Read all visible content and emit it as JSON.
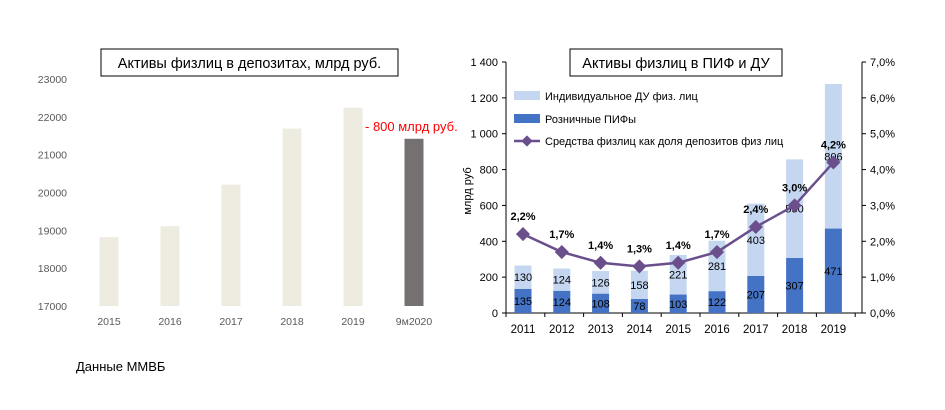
{
  "source_note": "Данные ММВБ",
  "chart_data": [
    {
      "type": "bar",
      "title": "Активы физлиц в депозитах, млрд руб.",
      "categories": [
        "2015",
        "2016",
        "2017",
        "2018",
        "2019",
        "9м2020"
      ],
      "values": [
        18820,
        19110,
        20210,
        21690,
        22240,
        21420
      ],
      "ylim": [
        17000,
        23000
      ],
      "yticks": [
        "17000",
        "18000",
        "19000",
        "20000",
        "21000",
        "22000",
        "23000"
      ],
      "annotation": "- 800 млрд руб.",
      "colors": {
        "normal": "#eeece1",
        "highlight": "#767171",
        "annotation": "#ff0000"
      },
      "grid": false
    },
    {
      "type": "bar",
      "title": "Активы физлиц в ПИФ и ДУ",
      "ylabel": "млрд руб",
      "categories": [
        "2011",
        "2012",
        "2013",
        "2014",
        "2015",
        "2016",
        "2017",
        "2018",
        "2019"
      ],
      "series": [
        {
          "name": "Розничные ПИФы",
          "values": [
            135,
            124,
            108,
            78,
            103,
            122,
            207,
            307,
            471
          ],
          "color": "#4472c4"
        },
        {
          "name": "Индивидуальное ДУ физ. лиц",
          "values": [
            130,
            124,
            126,
            158,
            221,
            281,
            403,
            550,
            806
          ],
          "color": "#c5d7f0"
        }
      ],
      "line_series": {
        "name": "Средства физлиц как доля депозитов физ лиц",
        "values": [
          2.2,
          1.7,
          1.4,
          1.3,
          1.4,
          1.7,
          2.4,
          3.0,
          4.2
        ],
        "labels": [
          "2,2%",
          "1,7%",
          "1,4%",
          "1,3%",
          "1,4%",
          "1,7%",
          "2,4%",
          "3,0%",
          "4,2%"
        ],
        "color": "#6b4f8c",
        "axis": "right"
      },
      "ylim": [
        0,
        1400
      ],
      "yticks": [
        "0",
        "200",
        "400",
        "600",
        "800",
        "1 000",
        "1 200",
        "1 400"
      ],
      "y2lim": [
        0,
        7
      ],
      "y2ticks": [
        "0,0%",
        "1,0%",
        "2,0%",
        "3,0%",
        "4,0%",
        "5,0%",
        "6,0%",
        "7,0%"
      ],
      "stacked": true,
      "legend_position": "top-left",
      "grid": false
    }
  ]
}
